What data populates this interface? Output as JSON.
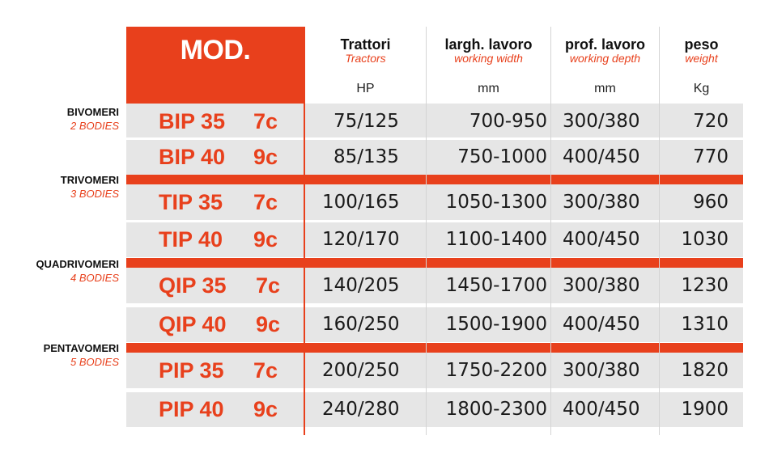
{
  "header": {
    "mod_label": "MOD.",
    "columns": [
      {
        "it": "Trattori",
        "en": "Tractors",
        "unit": "HP"
      },
      {
        "it": "largh. lavoro",
        "en": "working width",
        "unit": "mm"
      },
      {
        "it": "prof. lavoro",
        "en": "working depth",
        "unit": "mm"
      },
      {
        "it": "peso",
        "en": "weight",
        "unit": "Kg"
      }
    ]
  },
  "groups": [
    {
      "name_it": "BIVOMERI",
      "name_en": "2 BODIES"
    },
    {
      "name_it": "TRIVOMERI",
      "name_en": "3 BODIES"
    },
    {
      "name_it": "QUADRIVOMERI",
      "name_en": "4 BODIES"
    },
    {
      "name_it": "PENTAVOMERI",
      "name_en": "5 BODIES"
    }
  ],
  "rows": [
    {
      "model": "BIP 35",
      "suffix": "7c",
      "hp": "75/125",
      "width": "700-950",
      "depth": "300/380",
      "weight": "720"
    },
    {
      "model": "BIP 40",
      "suffix": "9c",
      "hp": "85/135",
      "width": "750-1000",
      "depth": "400/450",
      "weight": "770"
    },
    {
      "model": "TIP 35",
      "suffix": "7c",
      "hp": "100/165",
      "width": "1050-1300",
      "depth": "300/380",
      "weight": "960"
    },
    {
      "model": "TIP 40",
      "suffix": "9c",
      "hp": "120/170",
      "width": "1100-1400",
      "depth": "400/450",
      "weight": "1030"
    },
    {
      "model": "QIP 35",
      "suffix": "7c",
      "hp": "140/205",
      "width": "1450-1700",
      "depth": "300/380",
      "weight": "1230"
    },
    {
      "model": "QIP 40",
      "suffix": "9c",
      "hp": "160/250",
      "width": "1500-1900",
      "depth": "400/450",
      "weight": "1310"
    },
    {
      "model": "PIP 35",
      "suffix": "7c",
      "hp": "200/250",
      "width": "1750-2200",
      "depth": "300/380",
      "weight": "1820"
    },
    {
      "model": "PIP 40",
      "suffix": "9c",
      "hp": "240/280",
      "width": "1800-2300",
      "depth": "400/450",
      "weight": "1900"
    }
  ],
  "colors": {
    "accent": "#e8401c",
    "row_bg": "#e6e6e6"
  }
}
